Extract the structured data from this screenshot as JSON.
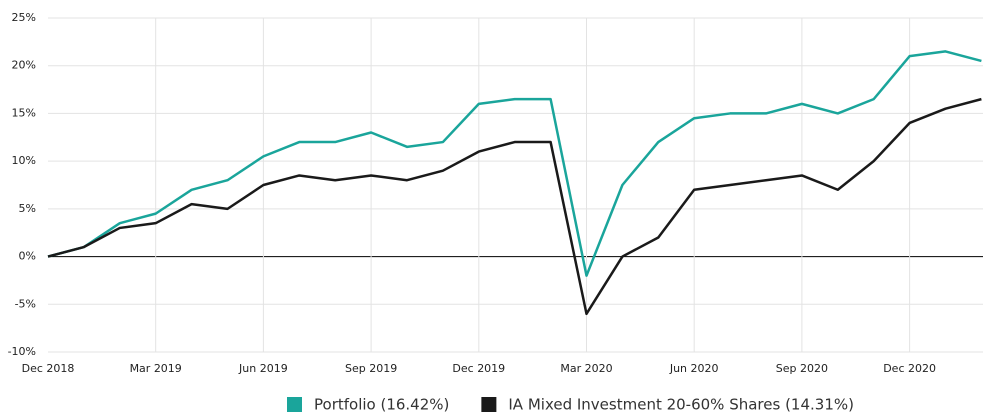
{
  "chart_data": {
    "type": "line",
    "categories": [
      "Dec 2018",
      null,
      null,
      "Mar 2019",
      null,
      null,
      "Jun 2019",
      null,
      null,
      "Sep 2019",
      null,
      null,
      "Dec 2019",
      null,
      null,
      "Mar 2020",
      null,
      null,
      "Jun 2020",
      null,
      null,
      "Sep 2020",
      null,
      null,
      "Dec 2020",
      null,
      null
    ],
    "series": [
      {
        "name": "Portfolio (16.42%)",
        "color": "#1aa59b",
        "values": [
          0,
          1,
          3.5,
          4.5,
          7,
          8,
          10.5,
          12,
          12,
          13,
          11.5,
          12,
          16,
          16.5,
          16.5,
          -2,
          7.5,
          12,
          14.5,
          15,
          15,
          16,
          15,
          16.5,
          21,
          21.5,
          20.5
        ]
      },
      {
        "name": "IA Mixed Investment 20-60% Shares (14.31%)",
        "color": "#1a1a1a",
        "values": [
          0,
          1,
          3,
          3.5,
          5.5,
          5,
          7.5,
          8.5,
          8,
          8.5,
          8,
          9,
          11,
          12,
          12,
          -6,
          0,
          2,
          7,
          7.5,
          8,
          8.5,
          7,
          10,
          14,
          15.5,
          16.5
        ]
      }
    ],
    "ylim": [
      -10,
      25
    ],
    "yticks": [
      {
        "value": -10,
        "label": "-10%"
      },
      {
        "value": -5,
        "label": "-5%"
      },
      {
        "value": 0,
        "label": "0%"
      },
      {
        "value": 5,
        "label": "5%"
      },
      {
        "value": 10,
        "label": "10%"
      },
      {
        "value": 15,
        "label": "15%"
      },
      {
        "value": 20,
        "label": "20%"
      },
      {
        "value": 25,
        "label": "25%"
      }
    ],
    "grid": true
  }
}
